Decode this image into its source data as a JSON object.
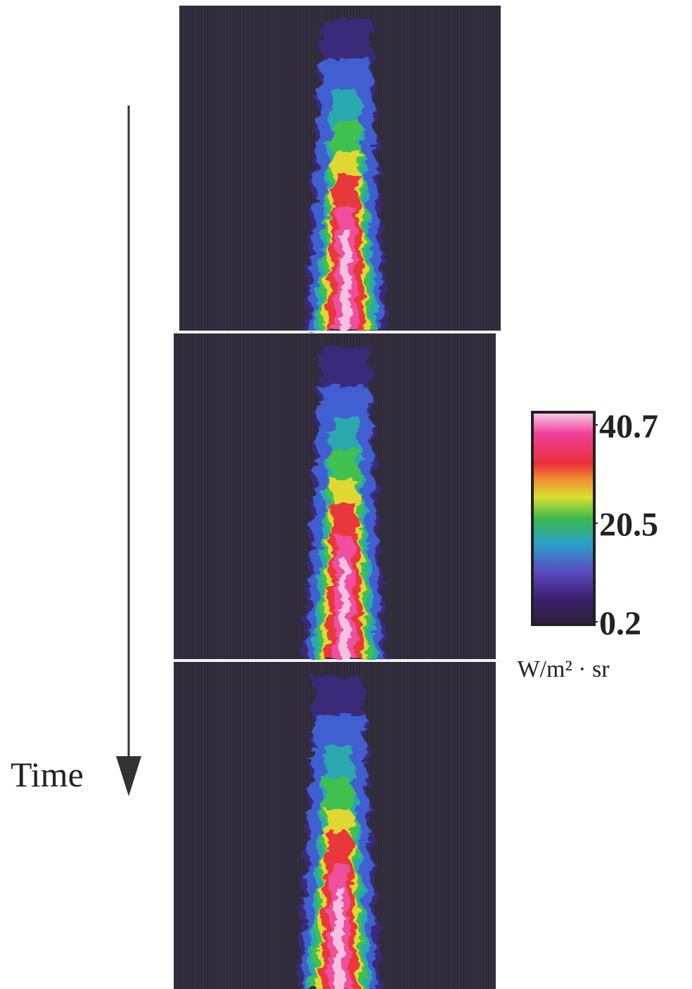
{
  "time_label": "Time",
  "colorbar": {
    "lim": [
      0.2,
      40.7
    ],
    "ticks": [
      40.7,
      20.5,
      0.2
    ],
    "unit": "W/m² · sr"
  }
}
